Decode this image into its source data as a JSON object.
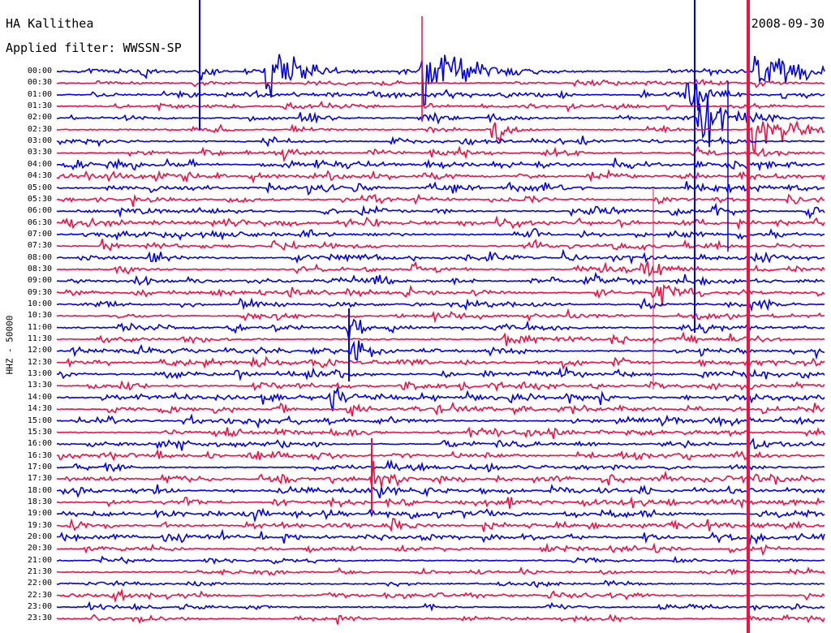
{
  "header": {
    "station": "HA Kallithea",
    "filter": "Applied filter: WWSSN-SP",
    "date": "2008-09-30",
    "channel": "HHZ - 50000"
  },
  "colors": {
    "trace_a": "#0000ee",
    "trace_b": "#ee1144",
    "background": "#ffffff",
    "text": "#000000"
  },
  "time_labels": [
    "00:00",
    "00:30",
    "01:00",
    "01:30",
    "02:00",
    "02:30",
    "03:00",
    "03:30",
    "04:00",
    "04:30",
    "05:00",
    "05:30",
    "06:00",
    "06:30",
    "07:00",
    "07:30",
    "08:00",
    "08:30",
    "09:00",
    "09:30",
    "10:00",
    "10:30",
    "11:00",
    "11:30",
    "12:00",
    "12:30",
    "13:00",
    "13:30",
    "14:00",
    "14:30",
    "15:00",
    "15:30",
    "16:00",
    "16:30",
    "17:00",
    "17:30",
    "18:00",
    "18:30",
    "19:00",
    "19:30",
    "20:00",
    "20:30",
    "21:00",
    "21:30",
    "22:00",
    "22:30",
    "23:00",
    "23:30"
  ]
}
